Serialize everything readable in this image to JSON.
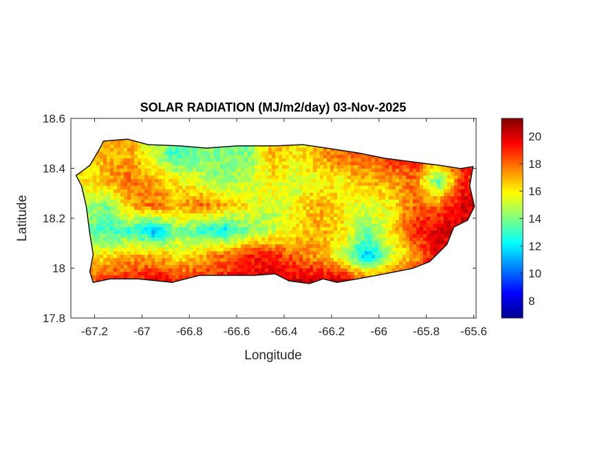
{
  "chart_data": {
    "type": "heatmap",
    "title": "SOLAR RADIATION (MJ/m2/day) 03-Nov-2025",
    "xlabel": "Longitude",
    "ylabel": "Latitude",
    "xlim": [
      -67.3,
      -65.59
    ],
    "ylim": [
      17.8,
      18.6
    ],
    "xticks": [
      -67.2,
      -67,
      -66.8,
      -66.6,
      -66.4,
      -66.2,
      -66,
      -65.8,
      -65.6
    ],
    "xtick_labels": [
      "-67.2",
      "-67",
      "-66.8",
      "-66.6",
      "-66.4",
      "-66.2",
      "-66",
      "-65.8",
      "-65.6"
    ],
    "yticks": [
      17.8,
      18,
      18.2,
      18.4,
      18.6
    ],
    "ytick_labels": [
      "17.8",
      "18",
      "18.2",
      "18.4",
      "18.6"
    ],
    "colorbar": {
      "colormap": "jet",
      "clim": [
        6.75,
        21.3
      ],
      "ticks": [
        8,
        10,
        12,
        14,
        16,
        18,
        20
      ],
      "tick_labels": [
        "8",
        "10",
        "12",
        "14",
        "16",
        "18",
        "20"
      ],
      "placement": "right"
    },
    "grid": false,
    "field": {
      "lon": [
        -67.25,
        -67.15,
        -67.05,
        -66.95,
        -66.85,
        -66.75,
        -66.65,
        -66.55,
        -66.45,
        -66.35,
        -66.25,
        -66.15,
        -66.05,
        -65.95,
        -65.85,
        -65.75,
        -65.65
      ],
      "lat": [
        18.45,
        18.35,
        18.25,
        18.15,
        18.05,
        17.95
      ],
      "values": [
        [
          16,
          17,
          17,
          15,
          13,
          14,
          14,
          14,
          17,
          16,
          17,
          18,
          18,
          19,
          19,
          18,
          19
        ],
        [
          16,
          17,
          18,
          17,
          16,
          15,
          14,
          15,
          16,
          15,
          16,
          16,
          17,
          17,
          18,
          13,
          19
        ],
        [
          15,
          14,
          17,
          18,
          17,
          18,
          17,
          16,
          15,
          16,
          17,
          16,
          15,
          16,
          18,
          18,
          20
        ],
        [
          14,
          13,
          13,
          11,
          14,
          13,
          12,
          14,
          15,
          16,
          17,
          16,
          14,
          16,
          19,
          20,
          20
        ],
        [
          16,
          16,
          17,
          17,
          16,
          17,
          18,
          19,
          19,
          18,
          17,
          15,
          11,
          15,
          17,
          20,
          18
        ],
        [
          18,
          19,
          19,
          20,
          19,
          19,
          19,
          20,
          20,
          20,
          20,
          20,
          18,
          19,
          19,
          19,
          19
        ]
      ]
    },
    "outline": [
      [
        -67.278,
        18.371
      ],
      [
        -67.22,
        18.412
      ],
      [
        -67.177,
        18.481
      ],
      [
        -67.162,
        18.509
      ],
      [
        -67.061,
        18.517
      ],
      [
        -66.974,
        18.495
      ],
      [
        -66.843,
        18.49
      ],
      [
        -66.728,
        18.481
      ],
      [
        -66.597,
        18.49
      ],
      [
        -66.438,
        18.49
      ],
      [
        -66.322,
        18.495
      ],
      [
        -66.206,
        18.479
      ],
      [
        -66.09,
        18.462
      ],
      [
        -65.974,
        18.44
      ],
      [
        -65.858,
        18.426
      ],
      [
        -65.742,
        18.412
      ],
      [
        -65.655,
        18.399
      ],
      [
        -65.603,
        18.407
      ],
      [
        -65.617,
        18.33
      ],
      [
        -65.597,
        18.247
      ],
      [
        -65.626,
        18.192
      ],
      [
        -65.684,
        18.164
      ],
      [
        -65.713,
        18.095
      ],
      [
        -65.786,
        18.026
      ],
      [
        -65.858,
        17.999
      ],
      [
        -65.974,
        17.977
      ],
      [
        -66.09,
        17.957
      ],
      [
        -66.177,
        17.943
      ],
      [
        -66.235,
        17.957
      ],
      [
        -66.293,
        17.938
      ],
      [
        -66.38,
        17.949
      ],
      [
        -66.438,
        17.977
      ],
      [
        -66.525,
        17.971
      ],
      [
        -66.641,
        17.971
      ],
      [
        -66.757,
        17.971
      ],
      [
        -66.872,
        17.943
      ],
      [
        -67.017,
        17.957
      ],
      [
        -67.133,
        17.957
      ],
      [
        -67.206,
        17.943
      ],
      [
        -67.22,
        17.985
      ],
      [
        -67.206,
        18.054
      ],
      [
        -67.22,
        18.137
      ],
      [
        -67.235,
        18.247
      ],
      [
        -67.255,
        18.33
      ]
    ]
  }
}
